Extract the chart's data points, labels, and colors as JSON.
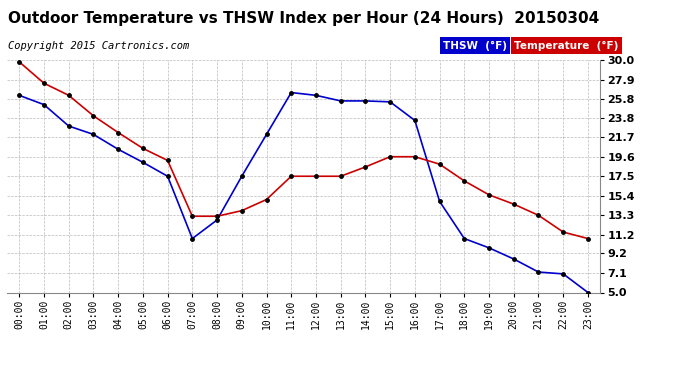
{
  "title": "Outdoor Temperature vs THSW Index per Hour (24 Hours)  20150304",
  "copyright": "Copyright 2015 Cartronics.com",
  "hours": [
    "00:00",
    "01:00",
    "02:00",
    "03:00",
    "04:00",
    "05:00",
    "06:00",
    "07:00",
    "08:00",
    "09:00",
    "10:00",
    "11:00",
    "12:00",
    "13:00",
    "14:00",
    "15:00",
    "16:00",
    "17:00",
    "18:00",
    "19:00",
    "20:00",
    "21:00",
    "22:00",
    "23:00"
  ],
  "thsw": [
    26.2,
    25.2,
    22.9,
    22.0,
    20.4,
    19.0,
    17.5,
    10.8,
    12.8,
    17.5,
    22.0,
    26.5,
    26.2,
    25.6,
    25.6,
    25.5,
    23.5,
    14.8,
    10.8,
    9.8,
    8.6,
    7.2,
    7.0,
    5.0
  ],
  "temp": [
    29.8,
    27.5,
    26.2,
    24.0,
    22.2,
    20.5,
    19.2,
    13.2,
    13.2,
    13.8,
    15.0,
    17.5,
    17.5,
    17.5,
    18.5,
    19.6,
    19.6,
    18.8,
    17.0,
    15.5,
    14.5,
    13.3,
    11.5,
    10.8
  ],
  "ylim_min": 5.0,
  "ylim_max": 30.0,
  "yticks": [
    5.0,
    7.1,
    9.2,
    11.2,
    13.3,
    15.4,
    17.5,
    19.6,
    21.7,
    23.8,
    25.8,
    27.9,
    30.0
  ],
  "thsw_color": "#0000cc",
  "temp_color": "#cc0000",
  "bg_color": "#ffffff",
  "plot_bg_color": "#ffffff",
  "grid_color": "#aaaaaa",
  "legend_thsw_bg": "#0000cc",
  "legend_temp_bg": "#cc0000",
  "title_fontsize": 11,
  "copyright_fontsize": 7.5
}
